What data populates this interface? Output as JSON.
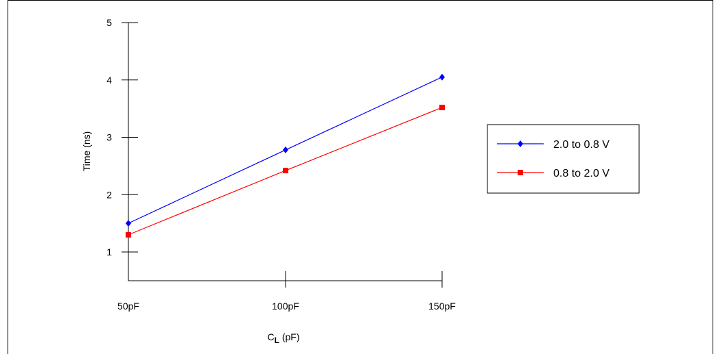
{
  "chart_data": {
    "type": "line",
    "title": "",
    "xlabel_main": "C",
    "xlabel_sub": "L",
    "xlabel_unit": " (pF)",
    "ylabel": "Time (ns)",
    "categories": [
      "50pF",
      "100pF",
      "150pF"
    ],
    "yticks": [
      "1",
      "2",
      "3",
      "4",
      "5"
    ],
    "ylim": [
      0.5,
      5
    ],
    "series": [
      {
        "name": "2.0 to 0.8 V",
        "color": "#0000ff",
        "marker": "diamond",
        "values": [
          1.5,
          2.78,
          4.05
        ]
      },
      {
        "name": "0.8 to 2.0 V",
        "color": "#ff0000",
        "marker": "square",
        "values": [
          1.3,
          2.42,
          3.52
        ]
      }
    ],
    "legend_position": "right",
    "grid": false
  }
}
